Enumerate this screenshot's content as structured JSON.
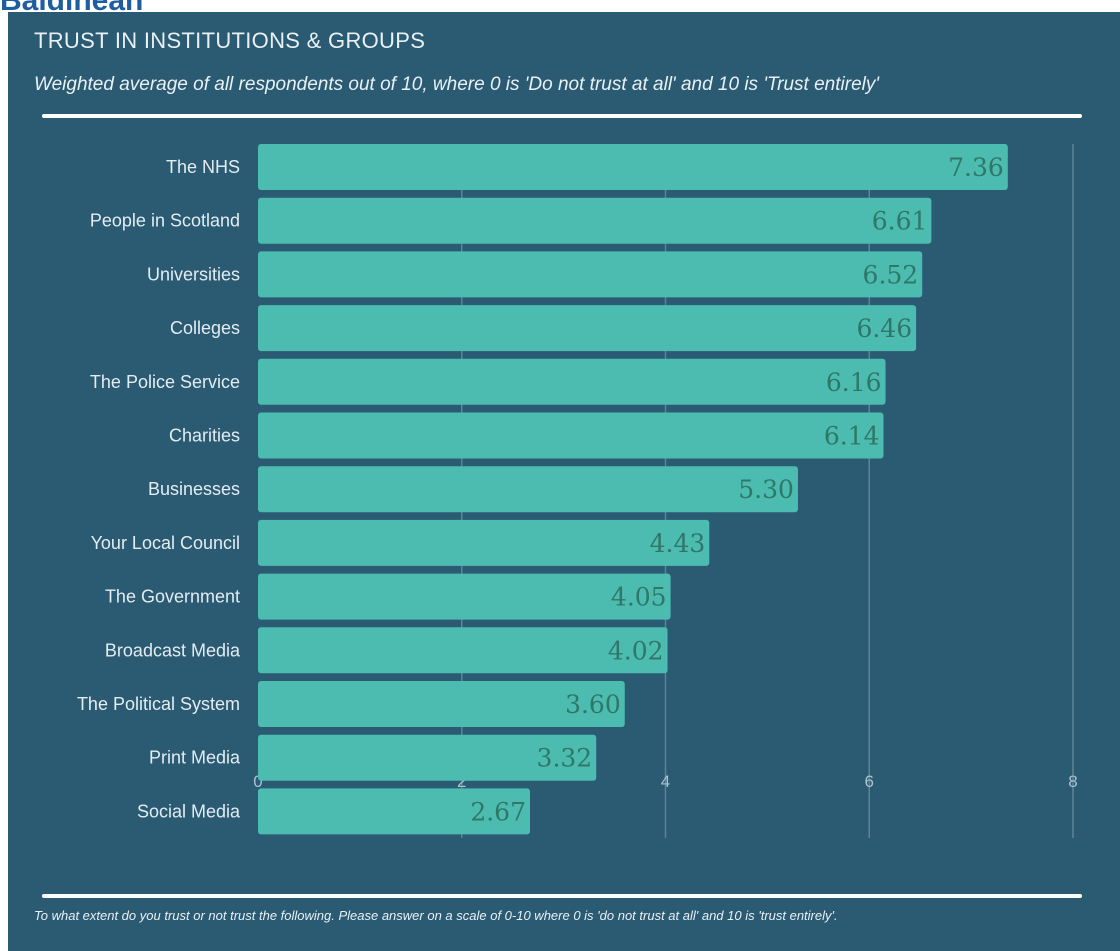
{
  "header": {
    "heading": "Baldihean"
  },
  "chart_data": {
    "type": "bar",
    "orientation": "horizontal",
    "title": "TRUST IN INSTITUTIONS & GROUPS",
    "subtitle": "Weighted average of all respondents out of 10, where 0 is 'Do not trust at all' and 10 is 'Trust entirely'",
    "footnote": "To what extent do you trust or not trust the following. Please answer on a scale of 0-10 where 0 is 'do not trust at all' and 10 is 'trust entirely'.",
    "categories": [
      "The NHS",
      "People in Scotland",
      "Universities",
      "Colleges",
      "The Police Service",
      "Charities",
      "Businesses",
      "Your Local Council",
      "The Government",
      "Broadcast Media",
      "The Political System",
      "Print Media",
      "Social Media"
    ],
    "values": [
      7.36,
      6.61,
      6.52,
      6.46,
      6.16,
      6.14,
      5.3,
      4.43,
      4.05,
      4.02,
      3.6,
      3.32,
      2.67
    ],
    "value_labels": [
      "7.36",
      "6.61",
      "6.52",
      "6.46",
      "6.16",
      "6.14",
      "5.30",
      "4.43",
      "4.05",
      "4.02",
      "3.60",
      "3.32",
      "2.67"
    ],
    "xlim": [
      0,
      8
    ],
    "x_ticks": [
      "0",
      "2",
      "4",
      "6",
      "8"
    ],
    "grid": true,
    "colors": {
      "bar": "#4cbcb1",
      "value_label": "#2f7768",
      "background": "#2b5a73",
      "gridline": "#5c8496"
    }
  }
}
